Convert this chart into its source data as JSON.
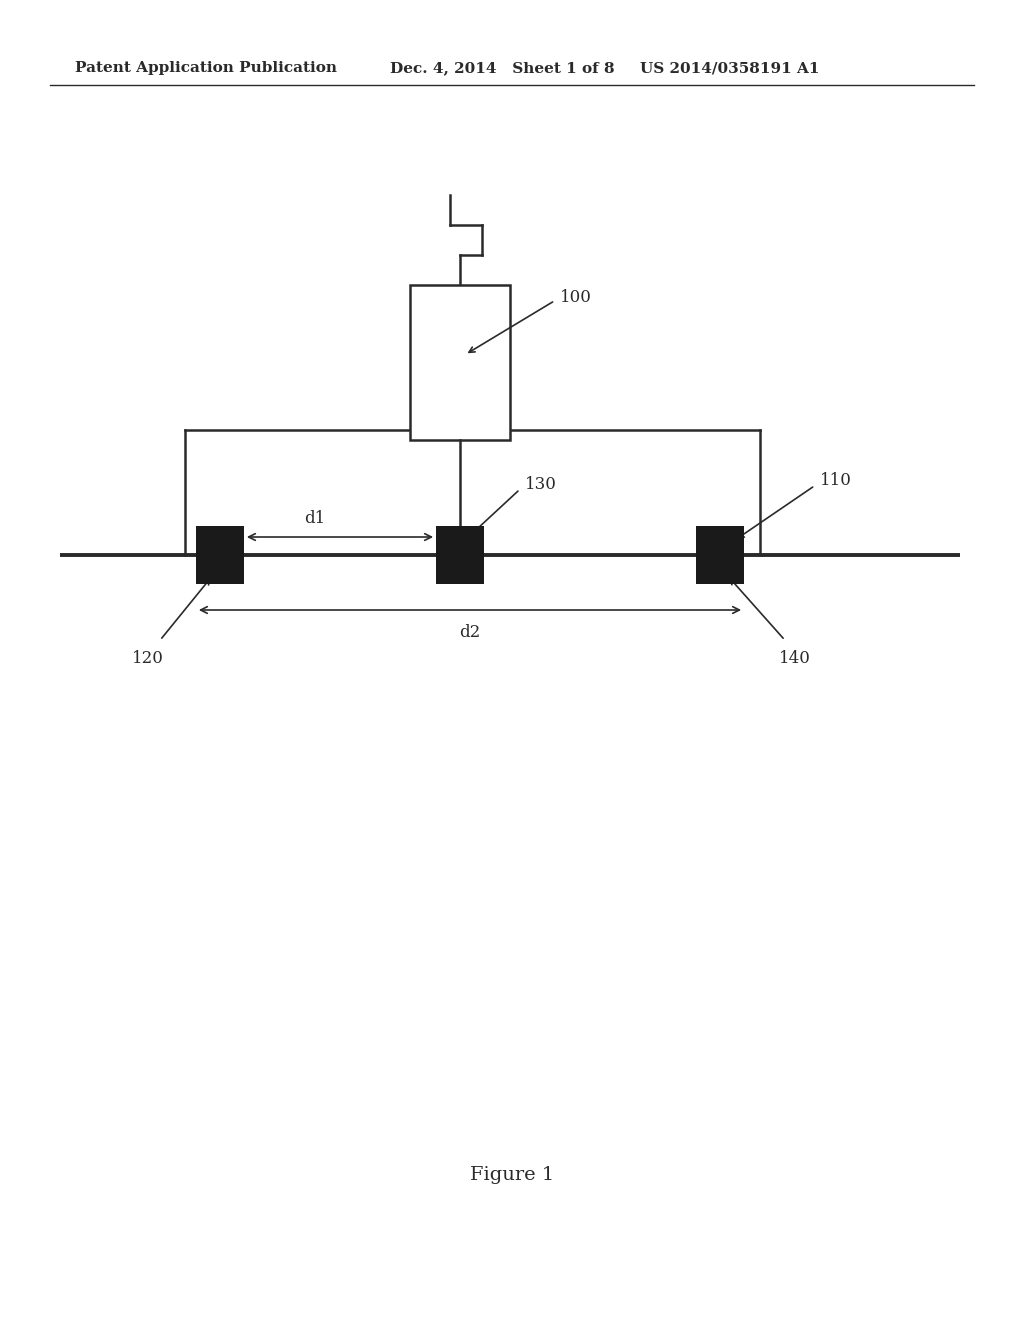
{
  "bg_color": "#ffffff",
  "line_color": "#2a2a2a",
  "electrode_color": "#1a1a1a",
  "header_left": "Patent Application Publication",
  "header_mid": "Dec. 4, 2014   Sheet 1 of 8",
  "header_right": "US 2014/0358191 A1",
  "figure_caption": "Figure 1",
  "label_100": "100",
  "label_110": "110",
  "label_120": "120",
  "label_130": "130",
  "label_140": "140",
  "label_d1": "d1",
  "label_d2": "d2"
}
